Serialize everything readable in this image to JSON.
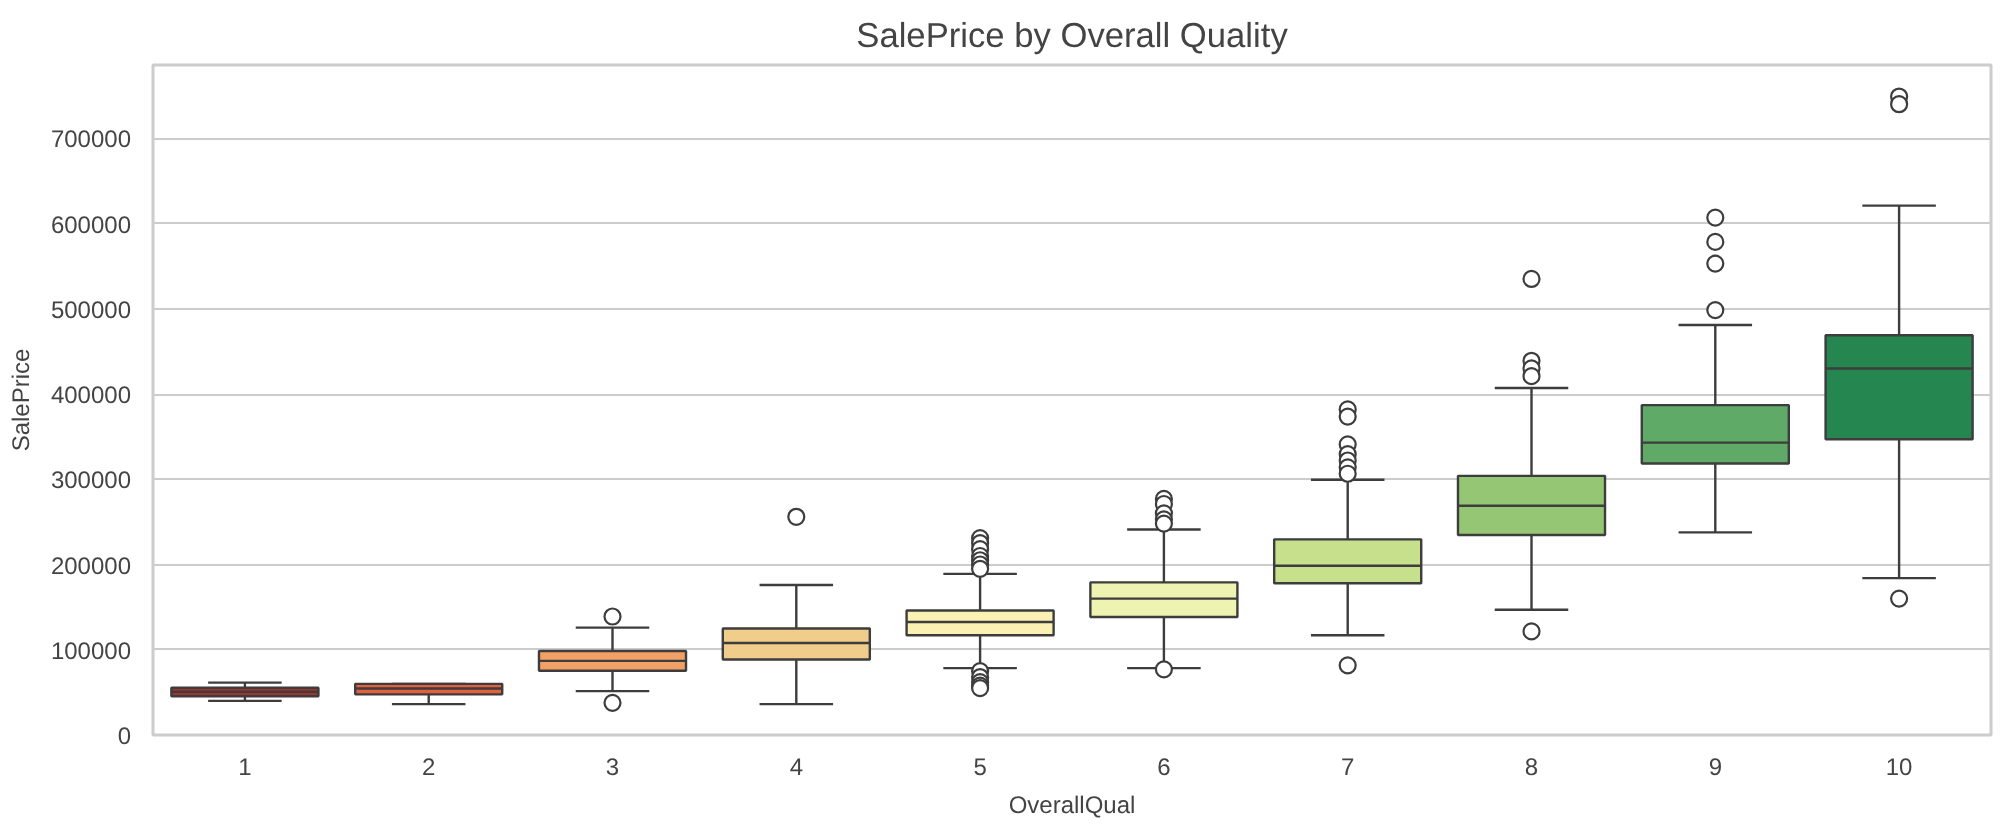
{
  "chart_data": {
    "type": "box",
    "title": "SalePrice by Overall Quality",
    "xlabel": "OverallQual",
    "ylabel": "SalePrice",
    "categories": [
      "1",
      "2",
      "3",
      "4",
      "5",
      "6",
      "7",
      "8",
      "9",
      "10"
    ],
    "colors": [
      "#a8322b",
      "#e3603f",
      "#f3a066",
      "#f0cd8a",
      "#fbf1b3",
      "#eef3b2",
      "#c6e08c",
      "#95c674",
      "#5faa66",
      "#25864f"
    ],
    "boxes": [
      {
        "low": 40000,
        "q1": 45400,
        "median": 50800,
        "q3": 55400,
        "high": 61500
      },
      {
        "low": 36200,
        "q1": 47700,
        "median": 54600,
        "q3": 60000,
        "high": 60000
      },
      {
        "low": 51500,
        "q1": 75400,
        "median": 87000,
        "q3": 98500,
        "high": 126000,
        "outliers": [
          139000,
          37700
        ]
      },
      {
        "low": 36200,
        "q1": 88500,
        "median": 108000,
        "q3": 125000,
        "high": 176000,
        "outliers": [
          256000
        ]
      },
      {
        "low": 78500,
        "q1": 117000,
        "median": 132500,
        "q3": 146000,
        "high": 189000,
        "outliers": [
          231000,
          225000,
          218000,
          210000,
          205000,
          200000,
          195000,
          75000,
          68000,
          62000,
          58000,
          55000
        ]
      },
      {
        "low": 78500,
        "q1": 138500,
        "median": 160000,
        "q3": 179000,
        "high": 241000,
        "outliers": [
          277000,
          271000,
          260000,
          253000,
          248000,
          77000
        ]
      },
      {
        "low": 117000,
        "q1": 178000,
        "median": 198600,
        "q3": 229500,
        "high": 299500,
        "outliers": [
          382000,
          373500,
          341000,
          329500,
          322000,
          314000,
          306500,
          81700
        ]
      },
      {
        "low": 147000,
        "q1": 234600,
        "median": 269000,
        "q3": 304000,
        "high": 407000,
        "outliers": [
          535000,
          439000,
          430000,
          421000,
          121500
        ]
      },
      {
        "low": 237700,
        "q1": 318500,
        "median": 343000,
        "q3": 387000,
        "high": 481000,
        "outliers": [
          607000,
          578500,
          553000,
          498500
        ]
      },
      {
        "low": 184000,
        "q1": 347000,
        "median": 430000,
        "q3": 469000,
        "high": 621000,
        "outliers": [
          749000,
          740000,
          160000
        ]
      }
    ],
    "ylim": [
      0,
      786000
    ],
    "yticks": [
      0,
      100000,
      200000,
      300000,
      400000,
      500000,
      600000,
      700000
    ],
    "grid": "y"
  }
}
